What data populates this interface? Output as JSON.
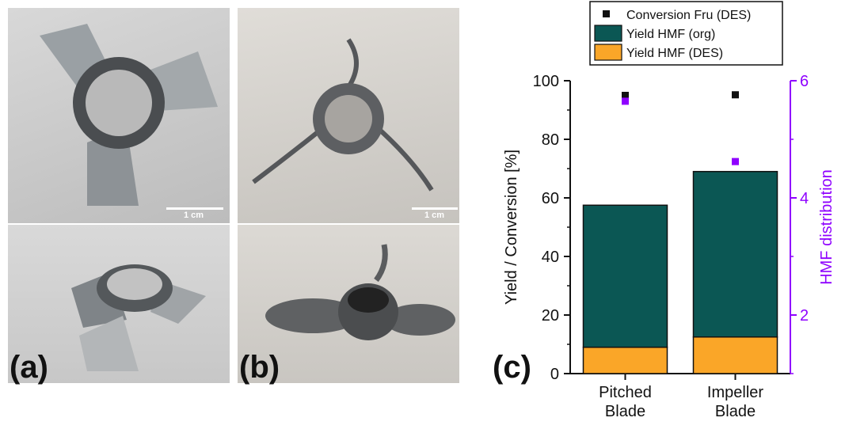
{
  "panels": {
    "a": {
      "label": "(a)",
      "scale_bar": "1 cm"
    },
    "b": {
      "label": "(b)",
      "scale_bar": "1 cm"
    },
    "c": {
      "label": "(c)"
    }
  },
  "chart_data": {
    "type": "bar",
    "stacked": true,
    "categories": [
      "Pitched Blade",
      "Impeller Blade"
    ],
    "category_lines": [
      [
        "Pitched",
        "Blade"
      ],
      [
        "Impeller",
        "Blade"
      ]
    ],
    "series": [
      {
        "name": "Yield HMF (DES)",
        "values": [
          9,
          12.5
        ],
        "color": "#FAA628",
        "axis": "left",
        "kind": "bar"
      },
      {
        "name": "Yield HMF (org)",
        "values": [
          48.5,
          56.5
        ],
        "color": "#0B5754",
        "axis": "left",
        "kind": "bar"
      },
      {
        "name": "Conversion Fru (DES)",
        "values": [
          95,
          95.2
        ],
        "color": "#111111",
        "axis": "left",
        "kind": "scatter"
      },
      {
        "values": [
          5.65,
          4.62
        ],
        "color": "#8F00FF",
        "axis": "right",
        "kind": "scatter"
      }
    ],
    "legend": [
      "Conversion Fru (DES)",
      "Yield HMF (org)",
      "Yield HMF (DES)"
    ],
    "legend_position": "top",
    "ylabel": "Yield / Conversion [%]",
    "ylim": [
      0,
      100
    ],
    "yticks": [
      0,
      20,
      40,
      60,
      80,
      100
    ],
    "y2label": "HMF distribution",
    "y2lim": [
      1,
      6
    ],
    "y2ticks": [
      2,
      4,
      6
    ],
    "y2_color": "#8F00FF",
    "grid": false
  }
}
